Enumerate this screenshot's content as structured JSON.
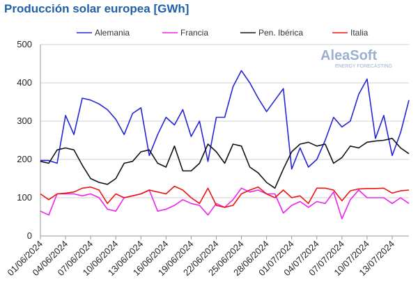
{
  "chart_data": {
    "type": "line",
    "title": "Producción solar europea [GWh]",
    "watermark": {
      "name": "AleaSoft",
      "tagline": "ENERGY FORECASTING"
    },
    "categories": [
      "01/06/2024",
      null,
      null,
      "04/06/2024",
      null,
      null,
      "07/06/2024",
      null,
      null,
      "10/06/2024",
      null,
      null,
      "13/06/2024",
      null,
      null,
      "16/06/2024",
      null,
      null,
      "19/06/2024",
      null,
      null,
      "22/06/2024",
      null,
      null,
      "25/06/2024",
      null,
      null,
      "28/06/2024",
      null,
      null,
      "01/07/2024",
      null,
      null,
      "04/07/2024",
      null,
      null,
      "07/07/2024",
      null,
      null,
      "10/07/2024",
      null,
      null,
      "13/07/2024",
      null,
      null
    ],
    "ylim": [
      0,
      500
    ],
    "yticks": [
      0,
      100,
      200,
      300,
      400,
      500
    ],
    "grid": true,
    "legend": "top",
    "series": [
      {
        "name": "Alemania",
        "color": "#2323d8",
        "values": [
          197,
          197,
          190,
          315,
          265,
          360,
          355,
          345,
          330,
          305,
          265,
          320,
          335,
          210,
          265,
          310,
          290,
          330,
          260,
          300,
          195,
          310,
          310,
          390,
          432,
          400,
          360,
          325,
          355,
          385,
          175,
          230,
          180,
          200,
          250,
          310,
          285,
          300,
          370,
          410,
          255,
          315,
          210,
          270,
          355
        ]
      },
      {
        "name": "Francia",
        "color": "#ee22ee",
        "values": [
          65,
          55,
          110,
          110,
          110,
          105,
          110,
          100,
          70,
          65,
          100,
          105,
          110,
          120,
          65,
          70,
          80,
          95,
          85,
          80,
          55,
          85,
          75,
          95,
          125,
          115,
          120,
          110,
          110,
          60,
          80,
          90,
          75,
          90,
          85,
          115,
          45,
          95,
          120,
          100,
          100,
          100,
          85,
          100,
          85
        ]
      },
      {
        "name": "Pen. Ibérica",
        "color": "#111111",
        "values": [
          195,
          190,
          225,
          230,
          225,
          185,
          150,
          140,
          135,
          150,
          190,
          195,
          220,
          225,
          190,
          180,
          235,
          170,
          170,
          190,
          240,
          220,
          190,
          240,
          235,
          180,
          165,
          140,
          125,
          175,
          220,
          240,
          245,
          235,
          240,
          190,
          205,
          235,
          230,
          245,
          248,
          250,
          255,
          230,
          215
        ]
      },
      {
        "name": "Italia",
        "color": "#ee1111",
        "values": [
          110,
          95,
          110,
          112,
          115,
          125,
          128,
          120,
          85,
          110,
          100,
          105,
          110,
          120,
          115,
          110,
          130,
          120,
          100,
          85,
          125,
          80,
          75,
          80,
          110,
          120,
          128,
          110,
          100,
          120,
          100,
          105,
          85,
          125,
          125,
          120,
          92,
          118,
          123,
          124,
          124,
          125,
          112,
          118,
          120
        ]
      }
    ]
  }
}
